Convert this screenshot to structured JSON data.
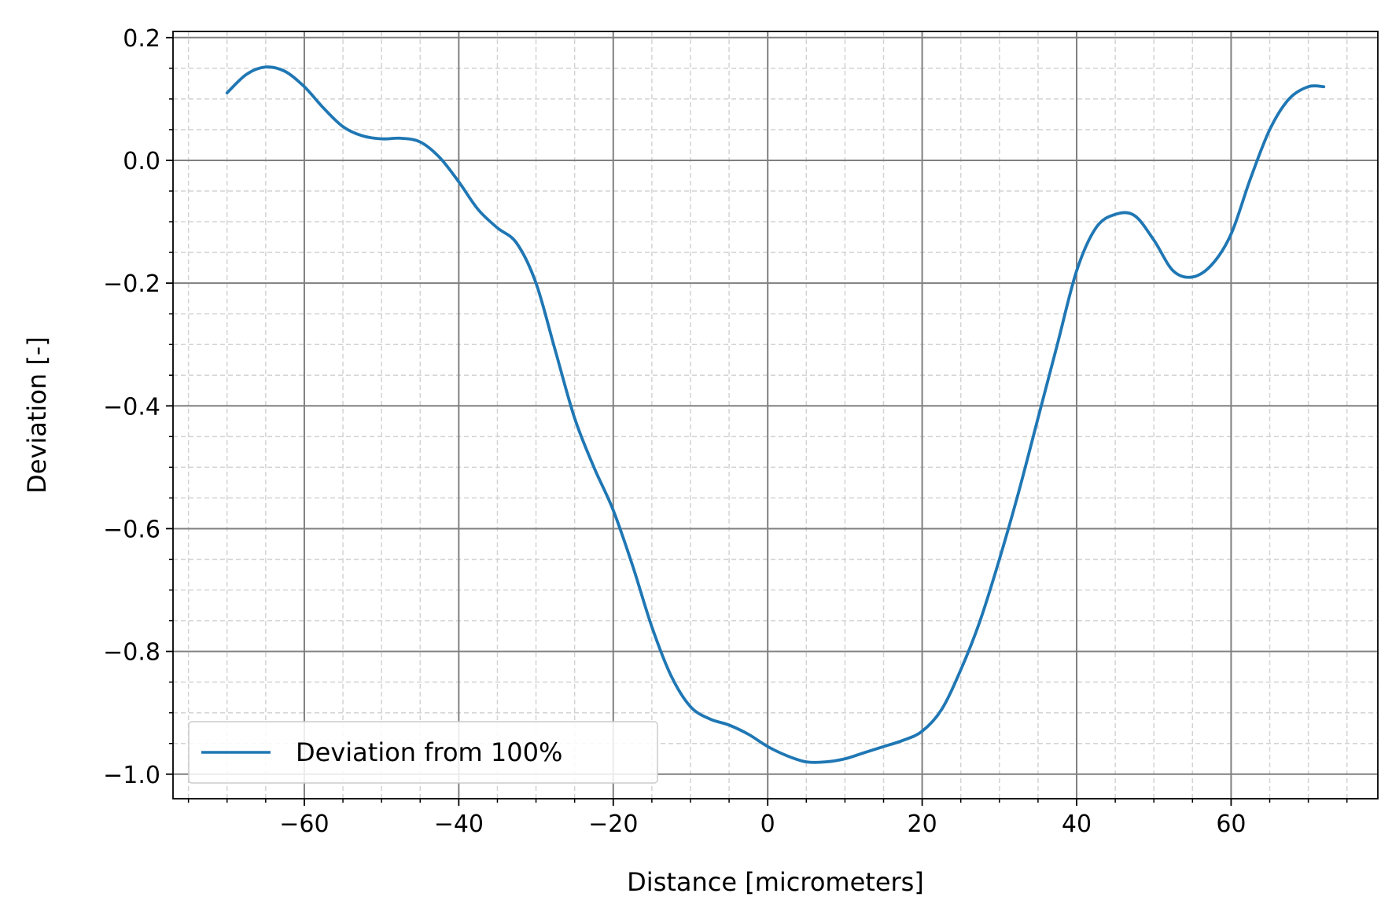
{
  "chart_data": {
    "type": "line",
    "title": "",
    "xlabel": "Distance [micrometers]",
    "ylabel": "Deviation [-]",
    "xlim": [
      -77,
      79
    ],
    "ylim": [
      -1.04,
      0.21
    ],
    "x_major_ticks": [
      -60,
      -40,
      -20,
      0,
      20,
      40,
      60
    ],
    "x_tick_labels": [
      "−60",
      "−40",
      "−20",
      "0",
      "20",
      "40",
      "60"
    ],
    "x_minor_step": 5,
    "y_major_ticks": [
      0.2,
      0.0,
      -0.2,
      -0.4,
      -0.6,
      -0.8,
      -1.0
    ],
    "y_tick_labels": [
      "0.2",
      "0.0",
      "−0.2",
      "−0.4",
      "−0.6",
      "−0.8",
      "−1.0"
    ],
    "y_minor_step": 0.05,
    "grid": {
      "major": true,
      "minor": true,
      "major_color": "#808080",
      "minor_color": "#d3d3d3"
    },
    "legend": {
      "position": "lower-left"
    },
    "series": [
      {
        "name": "Deviation from 100%",
        "color": "#1f77b4",
        "x": [
          -70,
          -67.5,
          -65,
          -62.5,
          -60,
          -57.5,
          -55,
          -52.5,
          -50,
          -47.5,
          -45,
          -42.5,
          -40,
          -37.5,
          -35,
          -32.5,
          -30,
          -27.5,
          -25,
          -22.5,
          -20,
          -17.5,
          -15,
          -12.5,
          -10,
          -7.5,
          -5,
          -2.5,
          0,
          2.5,
          5,
          7.5,
          10,
          12.5,
          15,
          17.5,
          20,
          22.5,
          25,
          27.5,
          30,
          32.5,
          35,
          37.5,
          40,
          42.5,
          45,
          47.5,
          50,
          52.5,
          55,
          57.5,
          60,
          62.5,
          65,
          67.5,
          70,
          72
        ],
        "y": [
          0.11,
          0.14,
          0.152,
          0.145,
          0.12,
          0.085,
          0.055,
          0.04,
          0.035,
          0.036,
          0.03,
          0.005,
          -0.035,
          -0.08,
          -0.11,
          -0.135,
          -0.2,
          -0.31,
          -0.42,
          -0.5,
          -0.57,
          -0.66,
          -0.76,
          -0.84,
          -0.89,
          -0.91,
          -0.92,
          -0.935,
          -0.955,
          -0.97,
          -0.98,
          -0.98,
          -0.975,
          -0.965,
          -0.955,
          -0.945,
          -0.93,
          -0.895,
          -0.83,
          -0.75,
          -0.65,
          -0.54,
          -0.42,
          -0.3,
          -0.18,
          -0.11,
          -0.088,
          -0.09,
          -0.13,
          -0.18,
          -0.19,
          -0.17,
          -0.12,
          -0.03,
          0.05,
          0.1,
          0.12,
          0.12
        ]
      }
    ]
  }
}
